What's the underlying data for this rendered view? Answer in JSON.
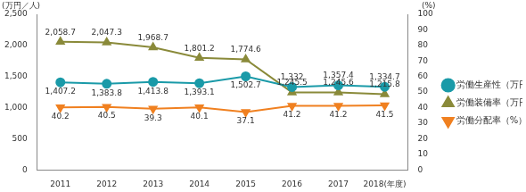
{
  "chart_data": {
    "type": "line",
    "ylabel": "(万円／人)",
    "y2label": "(%)",
    "categories": [
      "2011",
      "2012",
      "2013",
      "2014",
      "2015",
      "2016",
      "2017",
      "2018(年度)"
    ],
    "ylim": [
      0,
      2500
    ],
    "yticks": [
      0,
      500,
      {
        "value": 1000,
        "label": "1,000"
      },
      {
        "value": 1500,
        "label": "1,500"
      },
      {
        "value": 2000,
        "label": "2,000"
      },
      {
        "value": 2500,
        "label": "2,500"
      }
    ],
    "y2lim": [
      0,
      100
    ],
    "y2ticks": [
      0,
      10,
      20,
      30,
      40,
      50,
      60,
      70,
      80,
      90,
      100
    ],
    "grid": false,
    "legend": "right",
    "data_labels": true,
    "series": [
      {
        "name": "労働生産性（万円／人）",
        "color": "#1a9aa8",
        "marker": "circle",
        "values": [
          1407.2,
          1383.8,
          1413.8,
          1393.1,
          1502.7,
          1332,
          1357.4,
          1334.7
        ],
        "value_labels": [
          "1,407.2",
          "1,383.8",
          "1,413.8",
          "1,393.1",
          "1,502.7",
          "1,332",
          "1,357.4",
          "1,334.7"
        ]
      },
      {
        "name": "労働装備率（万円／人）",
        "color": "#8a8a3a",
        "marker": "triangle",
        "values": [
          2058.7,
          2047.3,
          1968.7,
          1801.2,
          1774.6,
          1245.5,
          1245.6,
          1215.8
        ],
        "value_labels": [
          "2,058.7",
          "2,047.3",
          "1,968.7",
          "1,801.2",
          "1,774.6",
          "1,245.5",
          "1,245.6",
          "1,215.8"
        ]
      },
      {
        "name": "労働分配率（%）",
        "color": "#f08020",
        "marker": "triangle_down",
        "axis": "y2",
        "values": [
          40.2,
          40.5,
          39.3,
          40.1,
          37.1,
          41.2,
          41.2,
          41.5
        ]
      }
    ]
  }
}
